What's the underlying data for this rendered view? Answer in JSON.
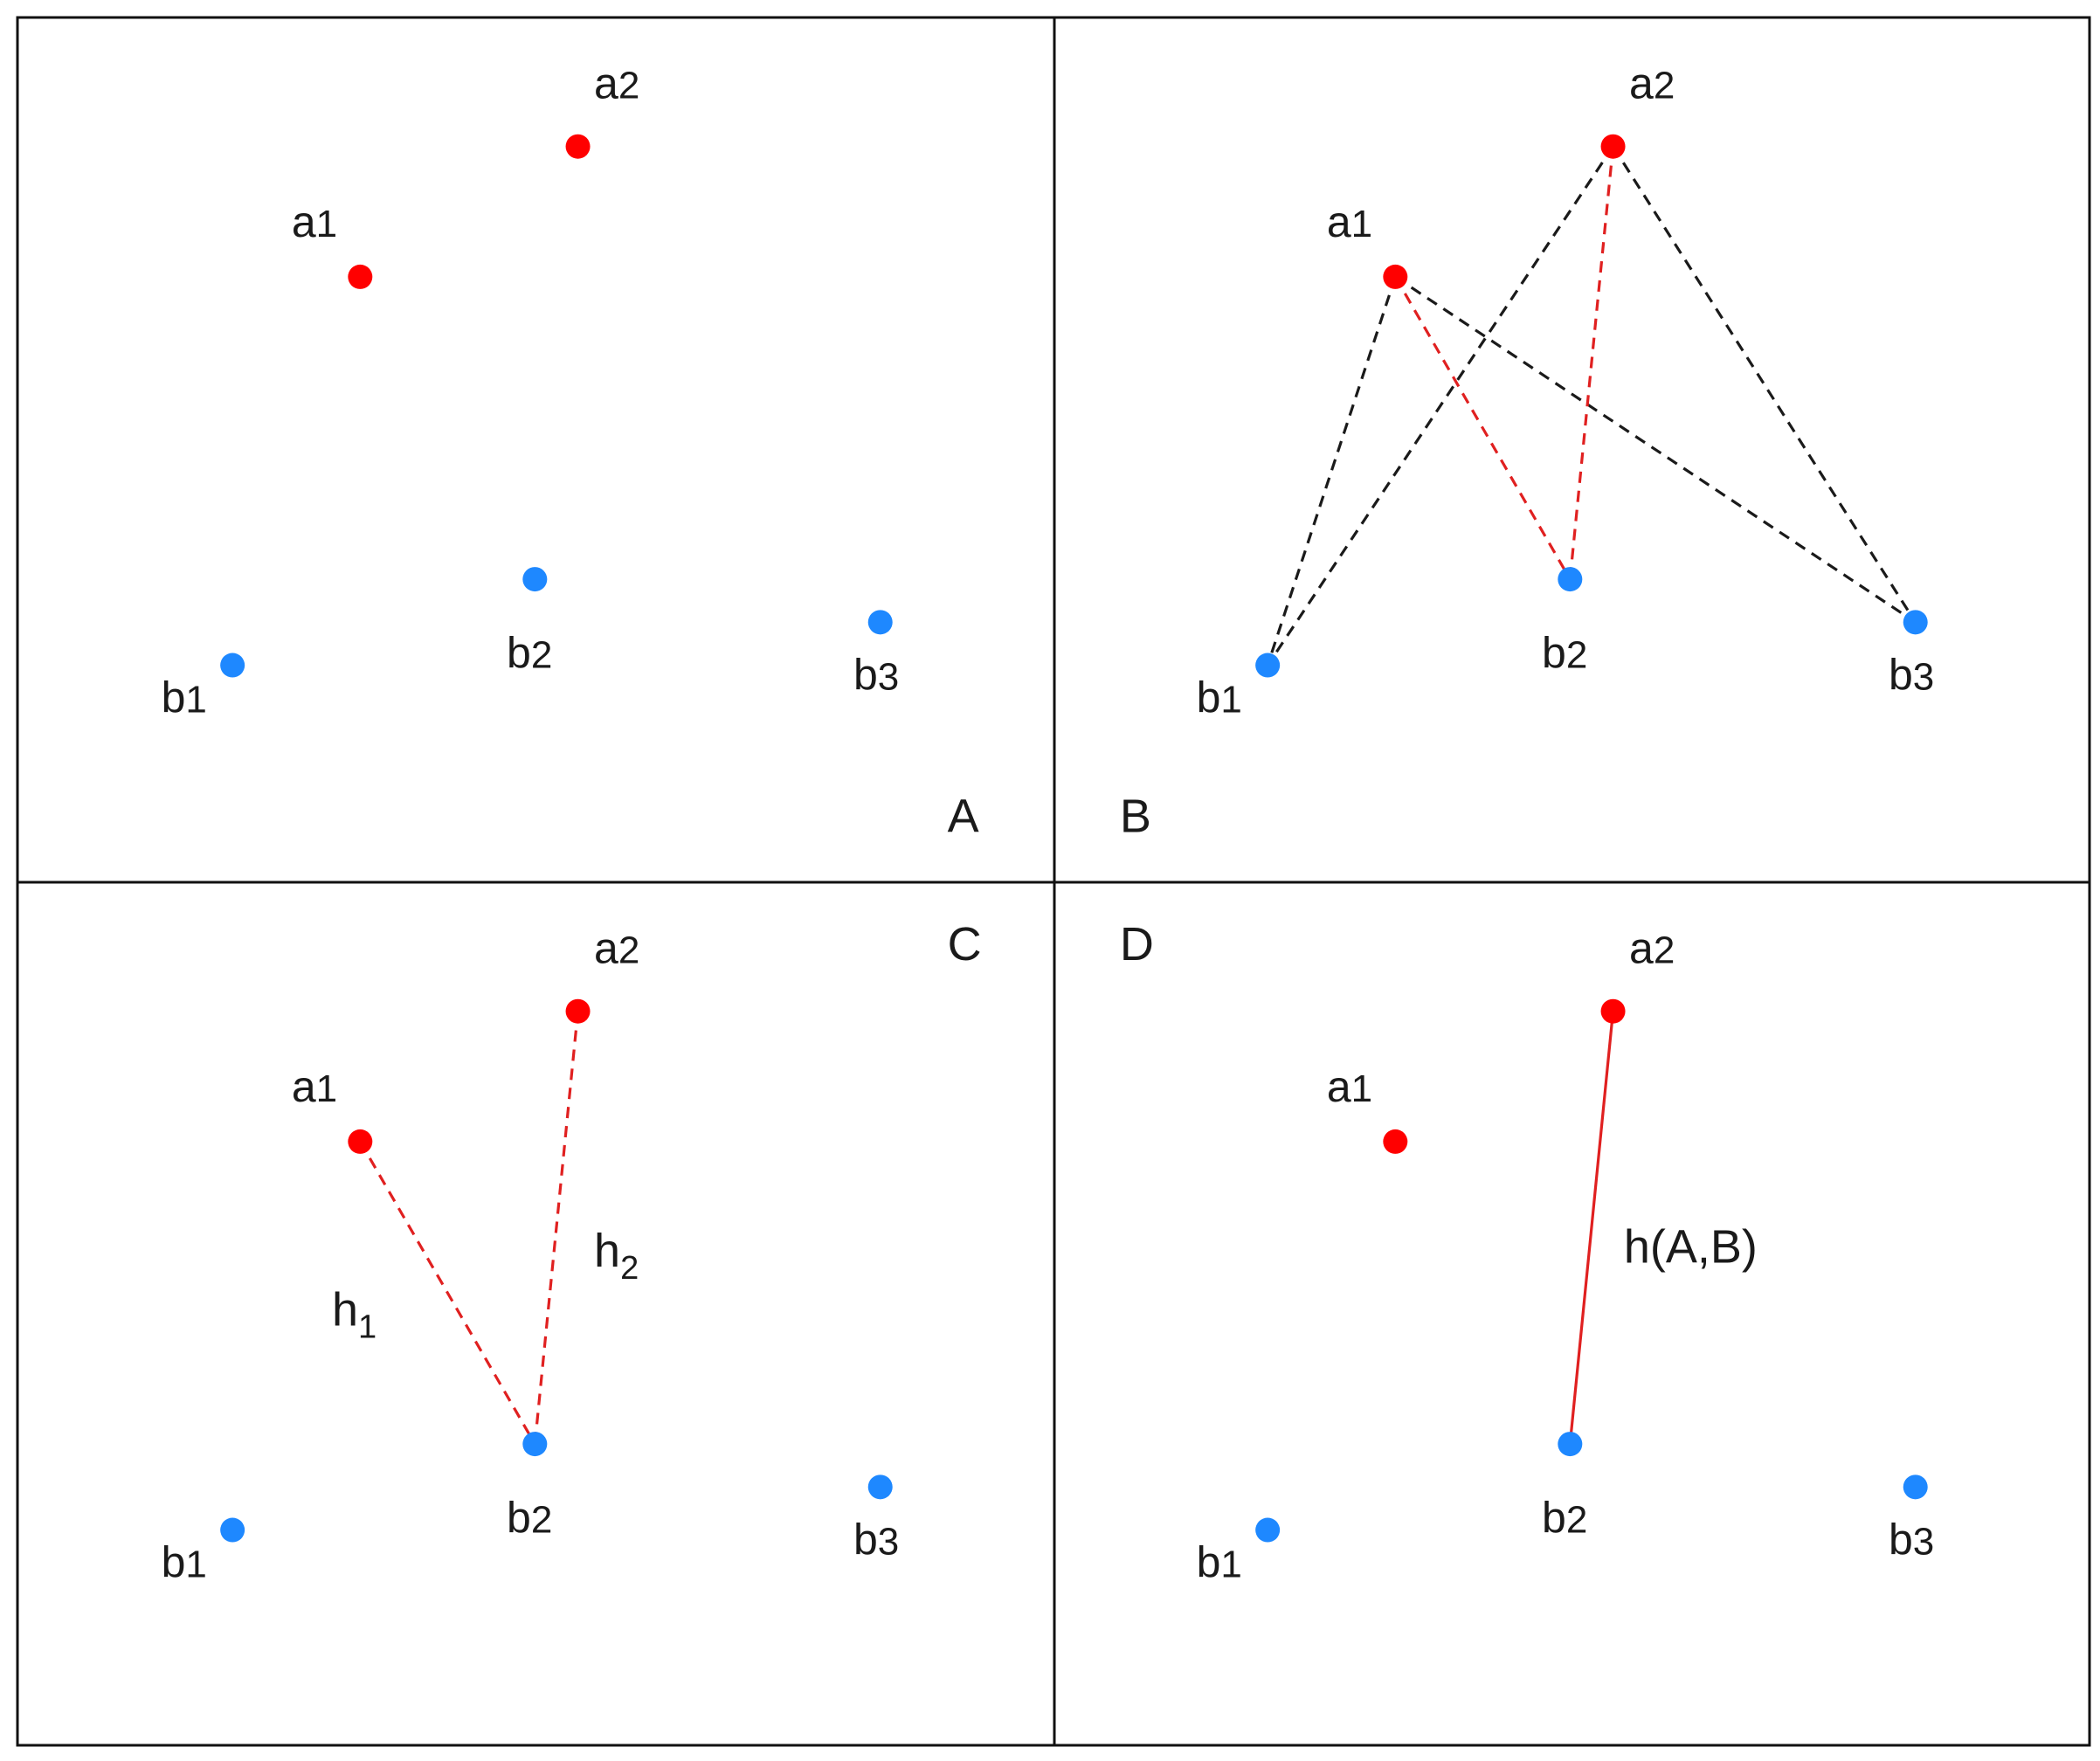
{
  "colors": {
    "point_a": "#ff0000",
    "point_b": "#1e88ff",
    "highlight_line": "#e02020",
    "other_line": "#1a1a1a",
    "frame": "#111111"
  },
  "point_sets": {
    "a": [
      {
        "id": "a1",
        "label_base": "a",
        "label_sub": "1"
      },
      {
        "id": "a2",
        "label_base": "a",
        "label_sub": "2"
      }
    ],
    "b": [
      {
        "id": "b1",
        "label_base": "b",
        "label_sub": "1"
      },
      {
        "id": "b2",
        "label_base": "b",
        "label_sub": "2"
      },
      {
        "id": "b3",
        "label_base": "b",
        "label_sub": "3"
      }
    ]
  },
  "panels": {
    "A": {
      "letter": "A",
      "lines": []
    },
    "B": {
      "letter": "B",
      "lines": [
        {
          "from": "a1",
          "to": "b1",
          "style": "dashed",
          "color": "other"
        },
        {
          "from": "a1",
          "to": "b2",
          "style": "dashed",
          "color": "highlight"
        },
        {
          "from": "a1",
          "to": "b3",
          "style": "dashed",
          "color": "other"
        },
        {
          "from": "a2",
          "to": "b1",
          "style": "dashed",
          "color": "other"
        },
        {
          "from": "a2",
          "to": "b2",
          "style": "dashed",
          "color": "highlight"
        },
        {
          "from": "a2",
          "to": "b3",
          "style": "dashed",
          "color": "other"
        }
      ]
    },
    "C": {
      "letter": "C",
      "lines": [
        {
          "from": "a1",
          "to": "b2",
          "style": "dashed",
          "color": "highlight",
          "label_base": "h",
          "label_sub": "1"
        },
        {
          "from": "a2",
          "to": "b2",
          "style": "dashed",
          "color": "highlight",
          "label_base": "h",
          "label_sub": "2"
        }
      ]
    },
    "D": {
      "letter": "D",
      "lines": [
        {
          "from": "a2",
          "to": "b2",
          "style": "solid",
          "color": "highlight",
          "label": "h(A,B)"
        }
      ]
    }
  }
}
